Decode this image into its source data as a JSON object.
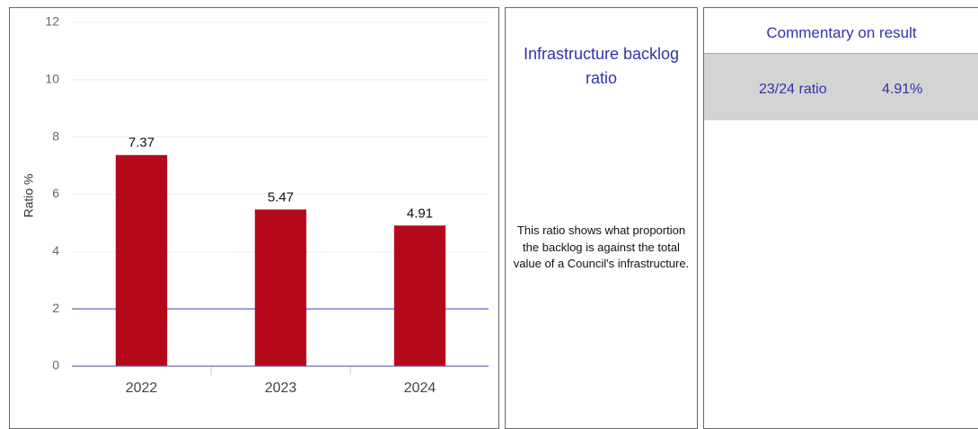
{
  "chart_data": {
    "type": "bar",
    "y_label": "Ratio %",
    "categories": [
      "2022",
      "2023",
      "2024"
    ],
    "values": [
      7.37,
      5.47,
      4.91
    ],
    "color": "#b5091b",
    "ylim": [
      0,
      12
    ],
    "yticks": [
      0,
      2,
      4,
      6,
      8,
      10,
      12
    ],
    "grid": true,
    "data_labels": true,
    "reference_line": {
      "value": 2,
      "color": "#6f6fd6"
    }
  },
  "indicator": {
    "title": "Infrastructure backlog ratio",
    "description": "This ratio shows what proportion the backlog is against the total value of a Council's infrastructure."
  },
  "commentary": {
    "header": "Commentary on result",
    "period": "23/24 ratio",
    "result": "4.91%"
  }
}
